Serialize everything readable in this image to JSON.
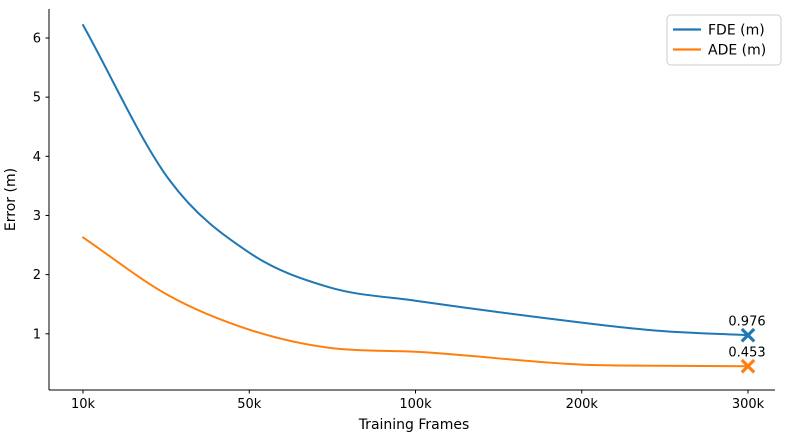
{
  "chart_data": {
    "type": "line",
    "xlabel": "Training Frames",
    "ylabel": "Error (m)",
    "x_tick_labels": [
      "10k",
      "50k",
      "100k",
      "200k",
      "300k"
    ],
    "y_tick_labels": [
      "1",
      "2",
      "3",
      "4",
      "5",
      "6"
    ],
    "y_tick_values": [
      1,
      2,
      3,
      4,
      5,
      6
    ],
    "ylim": [
      0.05,
      6.49
    ],
    "grid": false,
    "legend_position": "upper right",
    "x_axis_note": "ticks evenly spaced (non-linear in frames)",
    "series": [
      {
        "name": "FDE (m)",
        "color": "#1f77b4",
        "marker": "x",
        "values_at_ticks": [
          6.22,
          2.37,
          1.56,
          1.19,
          0.976
        ],
        "curve_x_frac": [
          0,
          0.52,
          1,
          1.49,
          2,
          3,
          3.46,
          4
        ],
        "curve_values": [
          6.22,
          3.6,
          2.37,
          1.78,
          1.56,
          1.19,
          1.05,
          0.976
        ],
        "final_value": 0.976,
        "annotation": "0.976"
      },
      {
        "name": "ADE (m)",
        "color": "#ff7f0e",
        "marker": "x",
        "values_at_ticks": [
          2.63,
          1.07,
          0.7,
          0.48,
          0.453
        ],
        "curve_x_frac": [
          0,
          0.52,
          1,
          1.49,
          2,
          3,
          3.46,
          4
        ],
        "curve_values": [
          2.63,
          1.64,
          1.07,
          0.76,
          0.695,
          0.48,
          0.46,
          0.453
        ],
        "final_value": 0.453,
        "annotation": "0.453"
      }
    ]
  }
}
